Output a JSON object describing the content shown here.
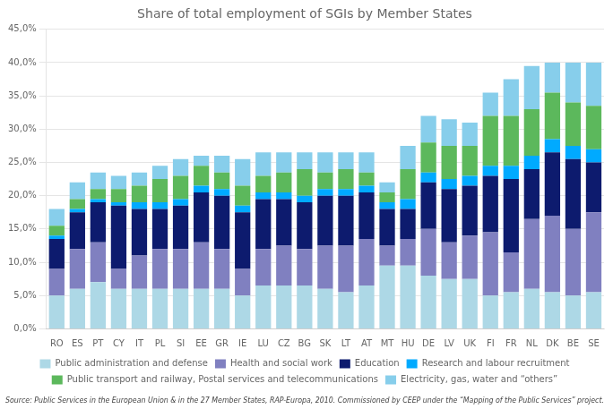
{
  "chart_data": {
    "type": "bar",
    "title": "Share of total employment of SGIs by Member States",
    "annotations": [
      "Source: Public Services in the European Union & in the 27 Member States, RAP-Europa, 2010. Commissioned by CEEP under the “Mapping of the Public Services” project."
    ],
    "categories": [
      "RO",
      "ES",
      "PT",
      "CY",
      "IT",
      "PL",
      "SI",
      "EE",
      "GR",
      "IE",
      "LU",
      "CZ",
      "BG",
      "SK",
      "LT",
      "AT",
      "MT",
      "HU",
      "DE",
      "LV",
      "UK",
      "FI",
      "FR",
      "NL",
      "DK",
      "BE",
      "SE"
    ],
    "series": [
      {
        "name": "Public administration and defense",
        "color": "#add8e6",
        "values": [
          5.0,
          6.0,
          7.0,
          6.0,
          6.0,
          6.0,
          6.0,
          6.0,
          6.0,
          5.0,
          6.5,
          6.5,
          6.5,
          6.0,
          5.5,
          6.5,
          9.5,
          9.5,
          8.0,
          7.5,
          7.5,
          5.0,
          5.5,
          6.0,
          5.5,
          5.0,
          5.5
        ]
      },
      {
        "name": "Health and social work",
        "color": "#8080c0",
        "values": [
          4.0,
          6.0,
          6.0,
          3.0,
          5.0,
          6.0,
          6.0,
          7.0,
          6.0,
          4.0,
          5.5,
          6.0,
          5.5,
          6.5,
          7.0,
          7.0,
          3.0,
          4.0,
          7.0,
          5.5,
          6.5,
          9.5,
          6.0,
          10.5,
          11.5,
          10.0,
          12.0
        ]
      },
      {
        "name": "Education",
        "color": "#0d1b6e",
        "values": [
          4.5,
          5.5,
          6.0,
          9.5,
          7.0,
          6.0,
          6.5,
          7.5,
          8.0,
          8.5,
          7.5,
          7.0,
          7.0,
          7.5,
          7.5,
          7.0,
          5.5,
          4.5,
          7.0,
          8.0,
          7.5,
          8.5,
          11.0,
          7.5,
          9.5,
          10.5,
          7.5
        ]
      },
      {
        "name": "Research and labour recruitment",
        "color": "#00aaff",
        "values": [
          0.5,
          0.5,
          0.5,
          0.5,
          1.0,
          1.0,
          1.0,
          1.0,
          1.0,
          1.0,
          1.0,
          1.0,
          1.0,
          1.0,
          1.0,
          1.0,
          1.0,
          1.5,
          1.5,
          1.5,
          1.5,
          1.5,
          2.0,
          2.0,
          2.0,
          2.0,
          2.0
        ]
      },
      {
        "name": "Public transport and railway, Postal services and telecommunications",
        "color": "#5cb85c",
        "values": [
          1.5,
          1.5,
          1.5,
          2.0,
          2.5,
          3.5,
          3.5,
          3.0,
          2.5,
          3.0,
          2.5,
          3.0,
          4.0,
          2.5,
          3.0,
          2.0,
          1.5,
          4.5,
          4.5,
          5.0,
          4.5,
          7.5,
          7.5,
          7.0,
          7.0,
          6.5,
          6.5
        ]
      },
      {
        "name": "Electricity, gas, water and “others”",
        "color": "#87ceeb",
        "values": [
          2.5,
          2.5,
          2.5,
          2.0,
          2.0,
          2.0,
          2.5,
          1.5,
          2.5,
          4.0,
          3.5,
          3.0,
          2.5,
          3.0,
          2.5,
          3.0,
          1.5,
          3.5,
          4.0,
          4.0,
          3.5,
          3.5,
          5.5,
          6.5,
          4.5,
          6.0,
          6.5
        ]
      }
    ],
    "stacked": true,
    "ylim": [
      0,
      45
    ],
    "yticks": [
      {
        "value": 0,
        "label": "0,0%"
      },
      {
        "value": 5,
        "label": "5,0%"
      },
      {
        "value": 10,
        "label": "10,0%"
      },
      {
        "value": 15,
        "label": "15,0%"
      },
      {
        "value": 20,
        "label": "20,0%"
      },
      {
        "value": 25,
        "label": "25,0%"
      },
      {
        "value": 30,
        "label": "30,0%"
      },
      {
        "value": 35,
        "label": "35,0%"
      },
      {
        "value": 40,
        "label": "40,0%"
      },
      {
        "value": 45,
        "label": "45,0%"
      }
    ],
    "grid": true,
    "legend": "bottom"
  }
}
